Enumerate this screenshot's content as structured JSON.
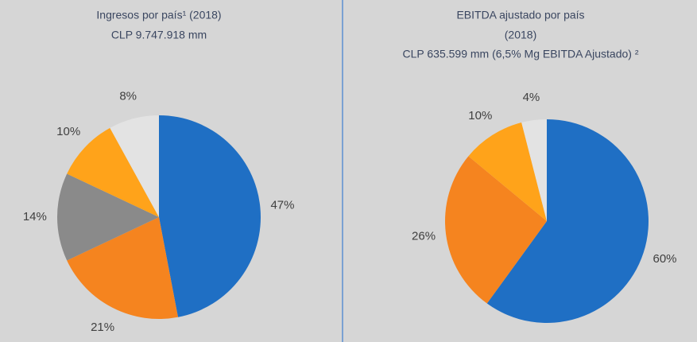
{
  "chart_data": [
    {
      "type": "pie",
      "title": "Ingresos por país¹ (2018)",
      "subtitle": [
        "CLP 9.747.918 mm"
      ],
      "values": [
        47,
        21,
        14,
        10,
        8
      ],
      "value_labels": [
        "47%",
        "21%",
        "14%",
        "10%",
        "8%"
      ],
      "colors": [
        "#1f6fc4",
        "#f5841f",
        "#8a8a8a",
        "#ffa31a",
        "#e3e3e3"
      ]
    },
    {
      "type": "pie",
      "title": "EBITDA ajustado por país",
      "subtitle": [
        "(2018)",
        "CLP 635.599 mm (6,5% Mg EBITDA Ajustado) ²"
      ],
      "values": [
        60,
        26,
        10,
        4
      ],
      "value_labels": [
        "60%",
        "26%",
        "10%",
        "4%"
      ],
      "colors": [
        "#1f6fc4",
        "#f5841f",
        "#ffa31a",
        "#e3e3e3"
      ]
    }
  ]
}
